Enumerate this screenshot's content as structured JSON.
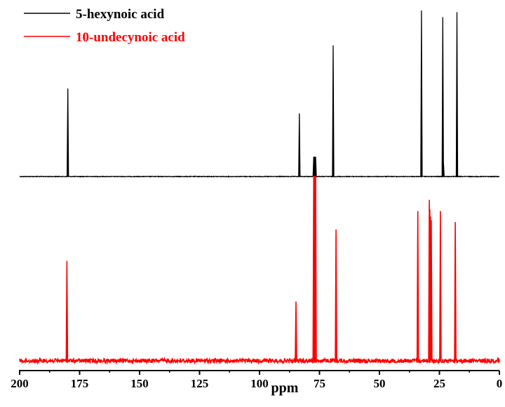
{
  "chart_data": {
    "type": "line",
    "title": "",
    "xlabel": "ppm",
    "ylabel": "",
    "xlim": [
      200,
      0
    ],
    "x_reversed": true,
    "x_ticks": [
      200,
      175,
      150,
      125,
      100,
      75,
      50,
      25,
      0
    ],
    "x_tick_labels": [
      "200",
      "175",
      "150",
      "125",
      "100",
      "75",
      "50",
      "25",
      "0"
    ],
    "y_ticks_shown": false,
    "grid": false,
    "legend_position": "top-left",
    "series": [
      {
        "name": "5-hexynoic acid",
        "color": "#000000",
        "noise_level": 0.004,
        "peaks": [
          {
            "ppm": 179.9,
            "intensity": 0.53
          },
          {
            "ppm": 83.4,
            "intensity": 0.38
          },
          {
            "ppm": 77.4,
            "intensity": 0.12
          },
          {
            "ppm": 77.0,
            "intensity": 0.12
          },
          {
            "ppm": 76.6,
            "intensity": 0.12
          },
          {
            "ppm": 69.3,
            "intensity": 0.79
          },
          {
            "ppm": 32.5,
            "intensity": 1.0
          },
          {
            "ppm": 23.6,
            "intensity": 0.96
          },
          {
            "ppm": 23.3,
            "intensity": 0.08
          },
          {
            "ppm": 17.7,
            "intensity": 0.99
          }
        ]
      },
      {
        "name": "10-undecynoic acid",
        "color": "#ff0000",
        "noise_level": 0.022,
        "peaks": [
          {
            "ppm": 180.3,
            "intensity": 0.54
          },
          {
            "ppm": 84.8,
            "intensity": 0.32
          },
          {
            "ppm": 77.4,
            "intensity": 1.0
          },
          {
            "ppm": 77.0,
            "intensity": 1.0
          },
          {
            "ppm": 76.6,
            "intensity": 1.0
          },
          {
            "ppm": 68.1,
            "intensity": 0.71
          },
          {
            "ppm": 34.0,
            "intensity": 0.81
          },
          {
            "ppm": 29.2,
            "intensity": 0.87
          },
          {
            "ppm": 29.0,
            "intensity": 0.82
          },
          {
            "ppm": 28.7,
            "intensity": 0.78
          },
          {
            "ppm": 28.4,
            "intensity": 0.76
          },
          {
            "ppm": 24.6,
            "intensity": 0.81
          },
          {
            "ppm": 18.4,
            "intensity": 0.75
          }
        ]
      }
    ]
  }
}
